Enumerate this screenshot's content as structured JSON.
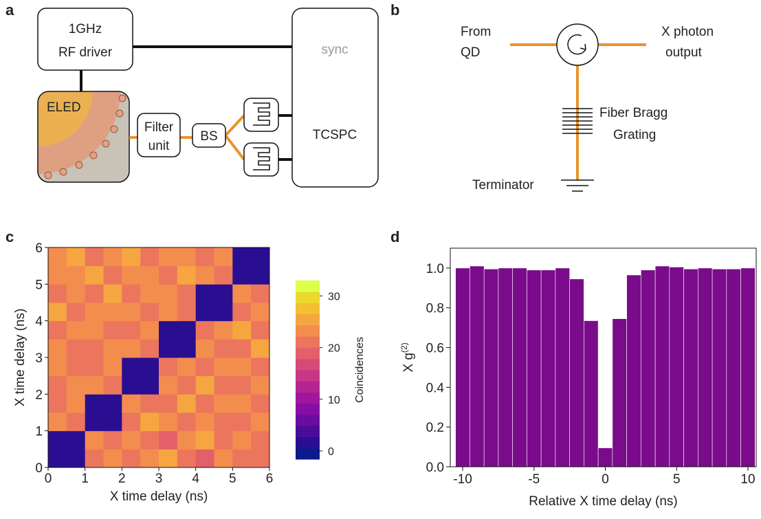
{
  "panel_a": {
    "label": "a",
    "rf_driver": [
      "1GHz",
      "RF driver"
    ],
    "eled": "ELED",
    "filter": [
      "Filter",
      "unit"
    ],
    "bs": "BS",
    "sync": "sync",
    "tcspc": "TCSPC"
  },
  "panel_b": {
    "label": "b",
    "from": [
      "From",
      "QD"
    ],
    "output": [
      "X photon",
      "output"
    ],
    "grating": [
      "Fiber Bragg",
      "Grating"
    ],
    "terminator": "Terminator"
  },
  "chart_data": [
    {
      "type": "heatmap",
      "panel_label": "c",
      "xlabel": "X time delay (ns)",
      "ylabel": "X time delay (ns)",
      "colorbar_label": "Coincidences",
      "xlim": [
        0,
        6
      ],
      "ylim": [
        0,
        6
      ],
      "xticks": [
        0,
        1,
        2,
        3,
        4,
        5,
        6
      ],
      "yticks": [
        0,
        1,
        2,
        3,
        4,
        5,
        6
      ],
      "zlim": [
        -1.6,
        33
      ],
      "zticks": [
        0,
        10,
        20,
        30
      ],
      "colorscale": [
        "#0c1a8c",
        "#2a0e92",
        "#4a0d9a",
        "#6a0ca0",
        "#870ea3",
        "#a0169c",
        "#b52591",
        "#c73786",
        "#d64a78",
        "#e3606b",
        "#ec765d",
        "#f38d4e",
        "#f5a640",
        "#f3bf33",
        "#ebd92e",
        "#dcff47"
      ],
      "z": [
        [
          2,
          2,
          22,
          24,
          21,
          23,
          25,
          22,
          20,
          24,
          22,
          21
        ],
        [
          2,
          2,
          23,
          21,
          24,
          22,
          20,
          23,
          25,
          21,
          23,
          22
        ],
        [
          23,
          21,
          2,
          2,
          22,
          25,
          23,
          21,
          24,
          22,
          21,
          24
        ],
        [
          21,
          24,
          2,
          2,
          24,
          21,
          22,
          25,
          21,
          23,
          24,
          22
        ],
        [
          22,
          23,
          24,
          21,
          2,
          2,
          23,
          22,
          25,
          21,
          22,
          23
        ],
        [
          24,
          21,
          22,
          23,
          2,
          2,
          21,
          24,
          22,
          24,
          23,
          21
        ],
        [
          23,
          22,
          21,
          24,
          23,
          22,
          2,
          2,
          24,
          22,
          21,
          25
        ],
        [
          21,
          24,
          23,
          22,
          21,
          24,
          2,
          2,
          22,
          23,
          25,
          22
        ],
        [
          25,
          22,
          24,
          23,
          24,
          21,
          23,
          22,
          2,
          2,
          22,
          24
        ],
        [
          22,
          24,
          21,
          25,
          22,
          23,
          24,
          21,
          2,
          2,
          24,
          21
        ],
        [
          24,
          23,
          25,
          22,
          23,
          24,
          22,
          25,
          23,
          21,
          2,
          2
        ],
        [
          23,
          25,
          22,
          24,
          25,
          22,
          23,
          24,
          21,
          23,
          2,
          2
        ]
      ]
    },
    {
      "type": "bar",
      "panel_label": "d",
      "xlabel": "Relative X time delay (ns)",
      "ylabel": "X g",
      "ylabel_superscript": "(2)",
      "color": "#7a0b8a",
      "x": [
        -10,
        -9,
        -8,
        -7,
        -6,
        -5,
        -4,
        -3,
        -2,
        -1,
        0,
        1,
        2,
        3,
        4,
        5,
        6,
        7,
        8,
        9,
        10
      ],
      "values": [
        1.0,
        1.01,
        0.995,
        1.0,
        1.0,
        0.99,
        0.99,
        1.0,
        0.945,
        0.735,
        0.095,
        0.745,
        0.965,
        0.99,
        1.01,
        1.005,
        0.995,
        1.0,
        0.995,
        0.995,
        1.0
      ],
      "bar_width": 1,
      "xlim": [
        -10.87,
        10.58
      ],
      "ylim": [
        0,
        1.1
      ],
      "xticks": [
        -10,
        -5,
        0,
        5,
        10
      ],
      "yticks": [
        {
          "value": 0,
          "label": "0.0"
        },
        {
          "value": 0.2,
          "label": "0.2"
        },
        {
          "value": 0.4,
          "label": "0.4"
        },
        {
          "value": 0.6,
          "label": "0.6"
        },
        {
          "value": 0.8,
          "label": "0.8"
        },
        {
          "value": 1.0,
          "label": "1.0"
        }
      ]
    }
  ]
}
